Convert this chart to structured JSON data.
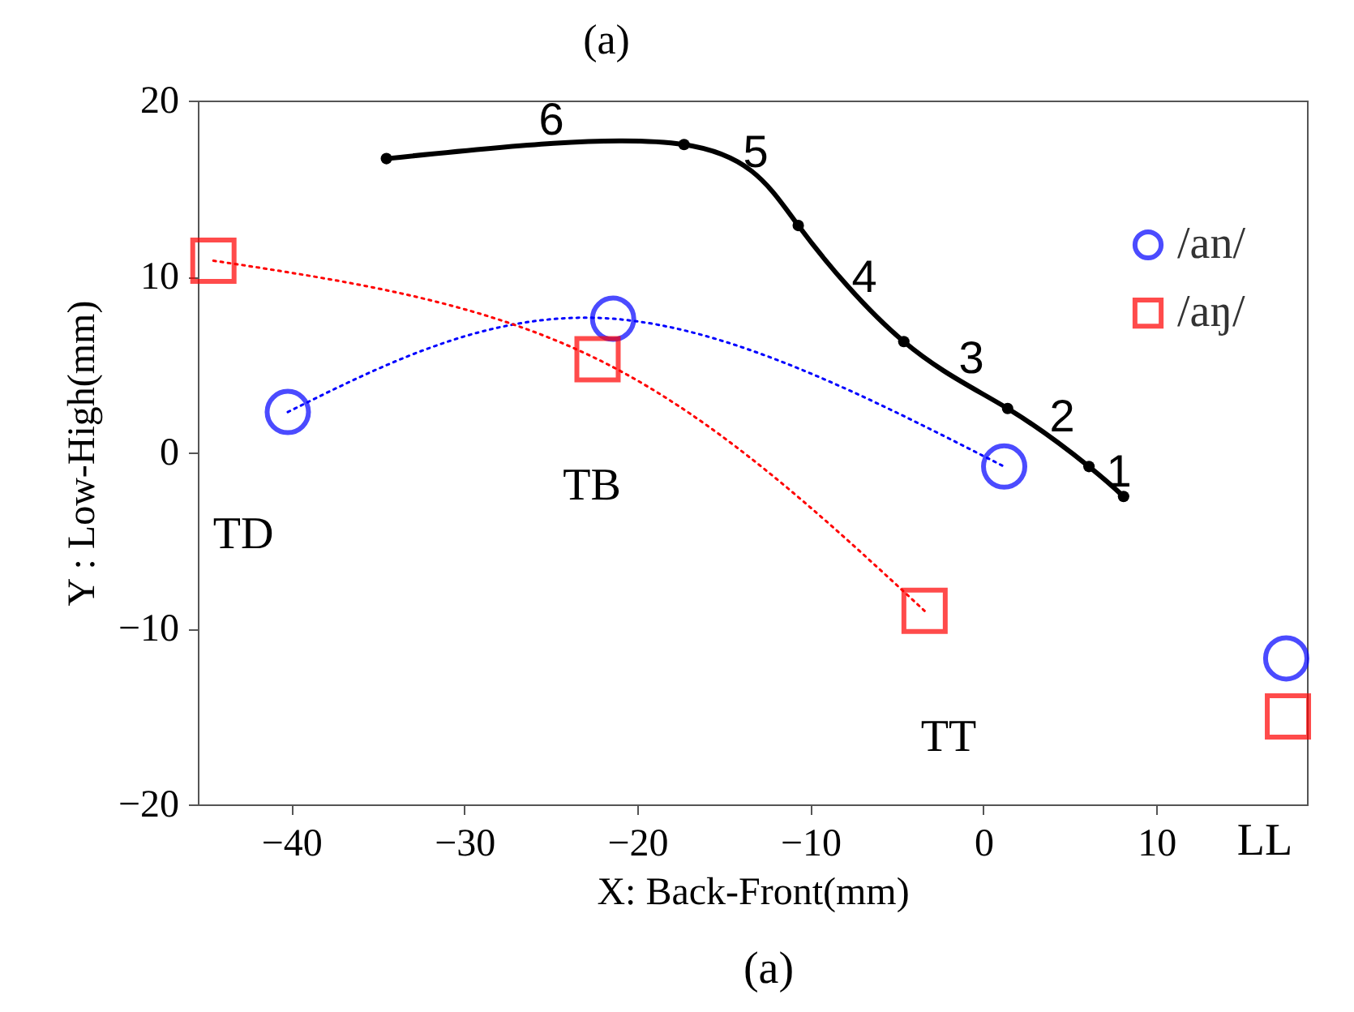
{
  "chart_data": {
    "type": "scatter",
    "title": "(a)",
    "xlabel": "X: Back-Front(mm)",
    "ylabel": "Y : Low-High(mm)",
    "xlim": [
      -45.4,
      18.7
    ],
    "xticks": [
      -40,
      -30,
      -20,
      -10,
      0,
      10
    ],
    "ylim": [
      -20,
      20
    ],
    "yticks": [
      -20,
      -10,
      0,
      10,
      20
    ],
    "grid": false,
    "legend": "right",
    "series": [
      {
        "type": "line",
        "color": "#000000",
        "marker": "circle",
        "line_style": "solid",
        "x": [
          -34.5,
          -17.3,
          -10.7,
          -4.6,
          1.4,
          6.1,
          8.1
        ],
        "values": [
          16.7,
          17.5,
          12.9,
          6.3,
          2.5,
          -0.8,
          -2.5
        ]
      },
      {
        "type": "line",
        "color": "#0000ff",
        "marker": "none",
        "line_style": "dotted",
        "x": [
          -40.2,
          -21.4,
          1.2
        ],
        "values": [
          2.3,
          7.6,
          -0.8
        ]
      },
      {
        "type": "line",
        "color": "#ff0000",
        "marker": "none",
        "line_style": "dotted",
        "x": [
          -44.5,
          -22.3,
          -3.4
        ],
        "values": [
          10.9,
          5.3,
          -9.0
        ]
      },
      {
        "type": "scatter",
        "name": "/an/",
        "color": "#0000ff",
        "marker": "circle",
        "x": [
          -40.2,
          -21.4,
          1.2,
          17.5
        ],
        "values": [
          2.3,
          7.6,
          -0.8,
          -11.7
        ]
      },
      {
        "type": "scatter",
        "name": "/aŋ/",
        "color": "#ff0000",
        "marker": "square",
        "x": [
          -44.5,
          -22.3,
          -3.4,
          17.6
        ],
        "values": [
          10.9,
          5.3,
          -9.0,
          -15.0
        ]
      }
    ],
    "annotations": [
      "6",
      "5",
      "4",
      "3",
      "2",
      "1",
      "TD",
      "TB",
      "TT",
      "LL",
      "(a)"
    ]
  }
}
